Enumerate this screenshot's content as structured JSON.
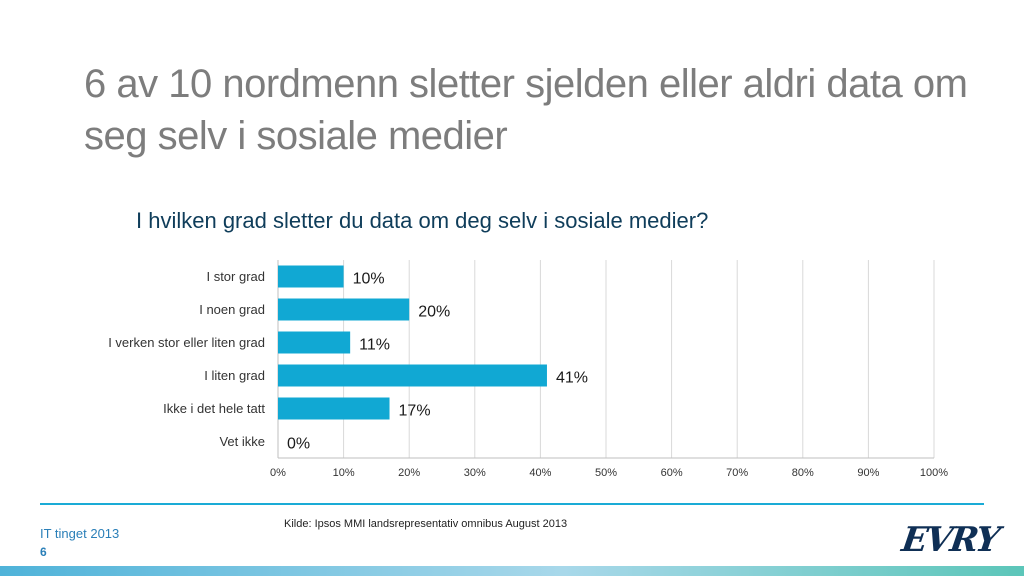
{
  "slide": {
    "title": "6 av 10 nordmenn sletter sjelden eller aldri data om seg selv i sosiale medier",
    "source": "Kilde: Ipsos MMI landsrepresentativ omnibus August 2013",
    "footer_title": "IT tinget 2013",
    "page_number": "6",
    "logo_text": "EVRY"
  },
  "colors": {
    "bar": "#11a8d3",
    "grid": "#d9d9d9",
    "accent": "#1aabd6"
  },
  "chart_data": {
    "type": "bar",
    "orientation": "horizontal",
    "title": "I hvilken grad sletter du data om deg selv i sosiale medier?",
    "categories": [
      "I stor grad",
      "I noen grad",
      "I verken stor eller liten grad",
      "I liten grad",
      "Ikke i det hele tatt",
      "Vet ikke"
    ],
    "values": [
      10,
      20,
      11,
      41,
      17,
      0
    ],
    "data_labels": [
      "10%",
      "20%",
      "11%",
      "41%",
      "17%",
      "0%"
    ],
    "xlim": [
      0,
      100
    ],
    "xticks": [
      "0%",
      "10%",
      "20%",
      "30%",
      "40%",
      "50%",
      "60%",
      "70%",
      "80%",
      "90%",
      "100%"
    ],
    "grid": true,
    "legend": "none"
  }
}
